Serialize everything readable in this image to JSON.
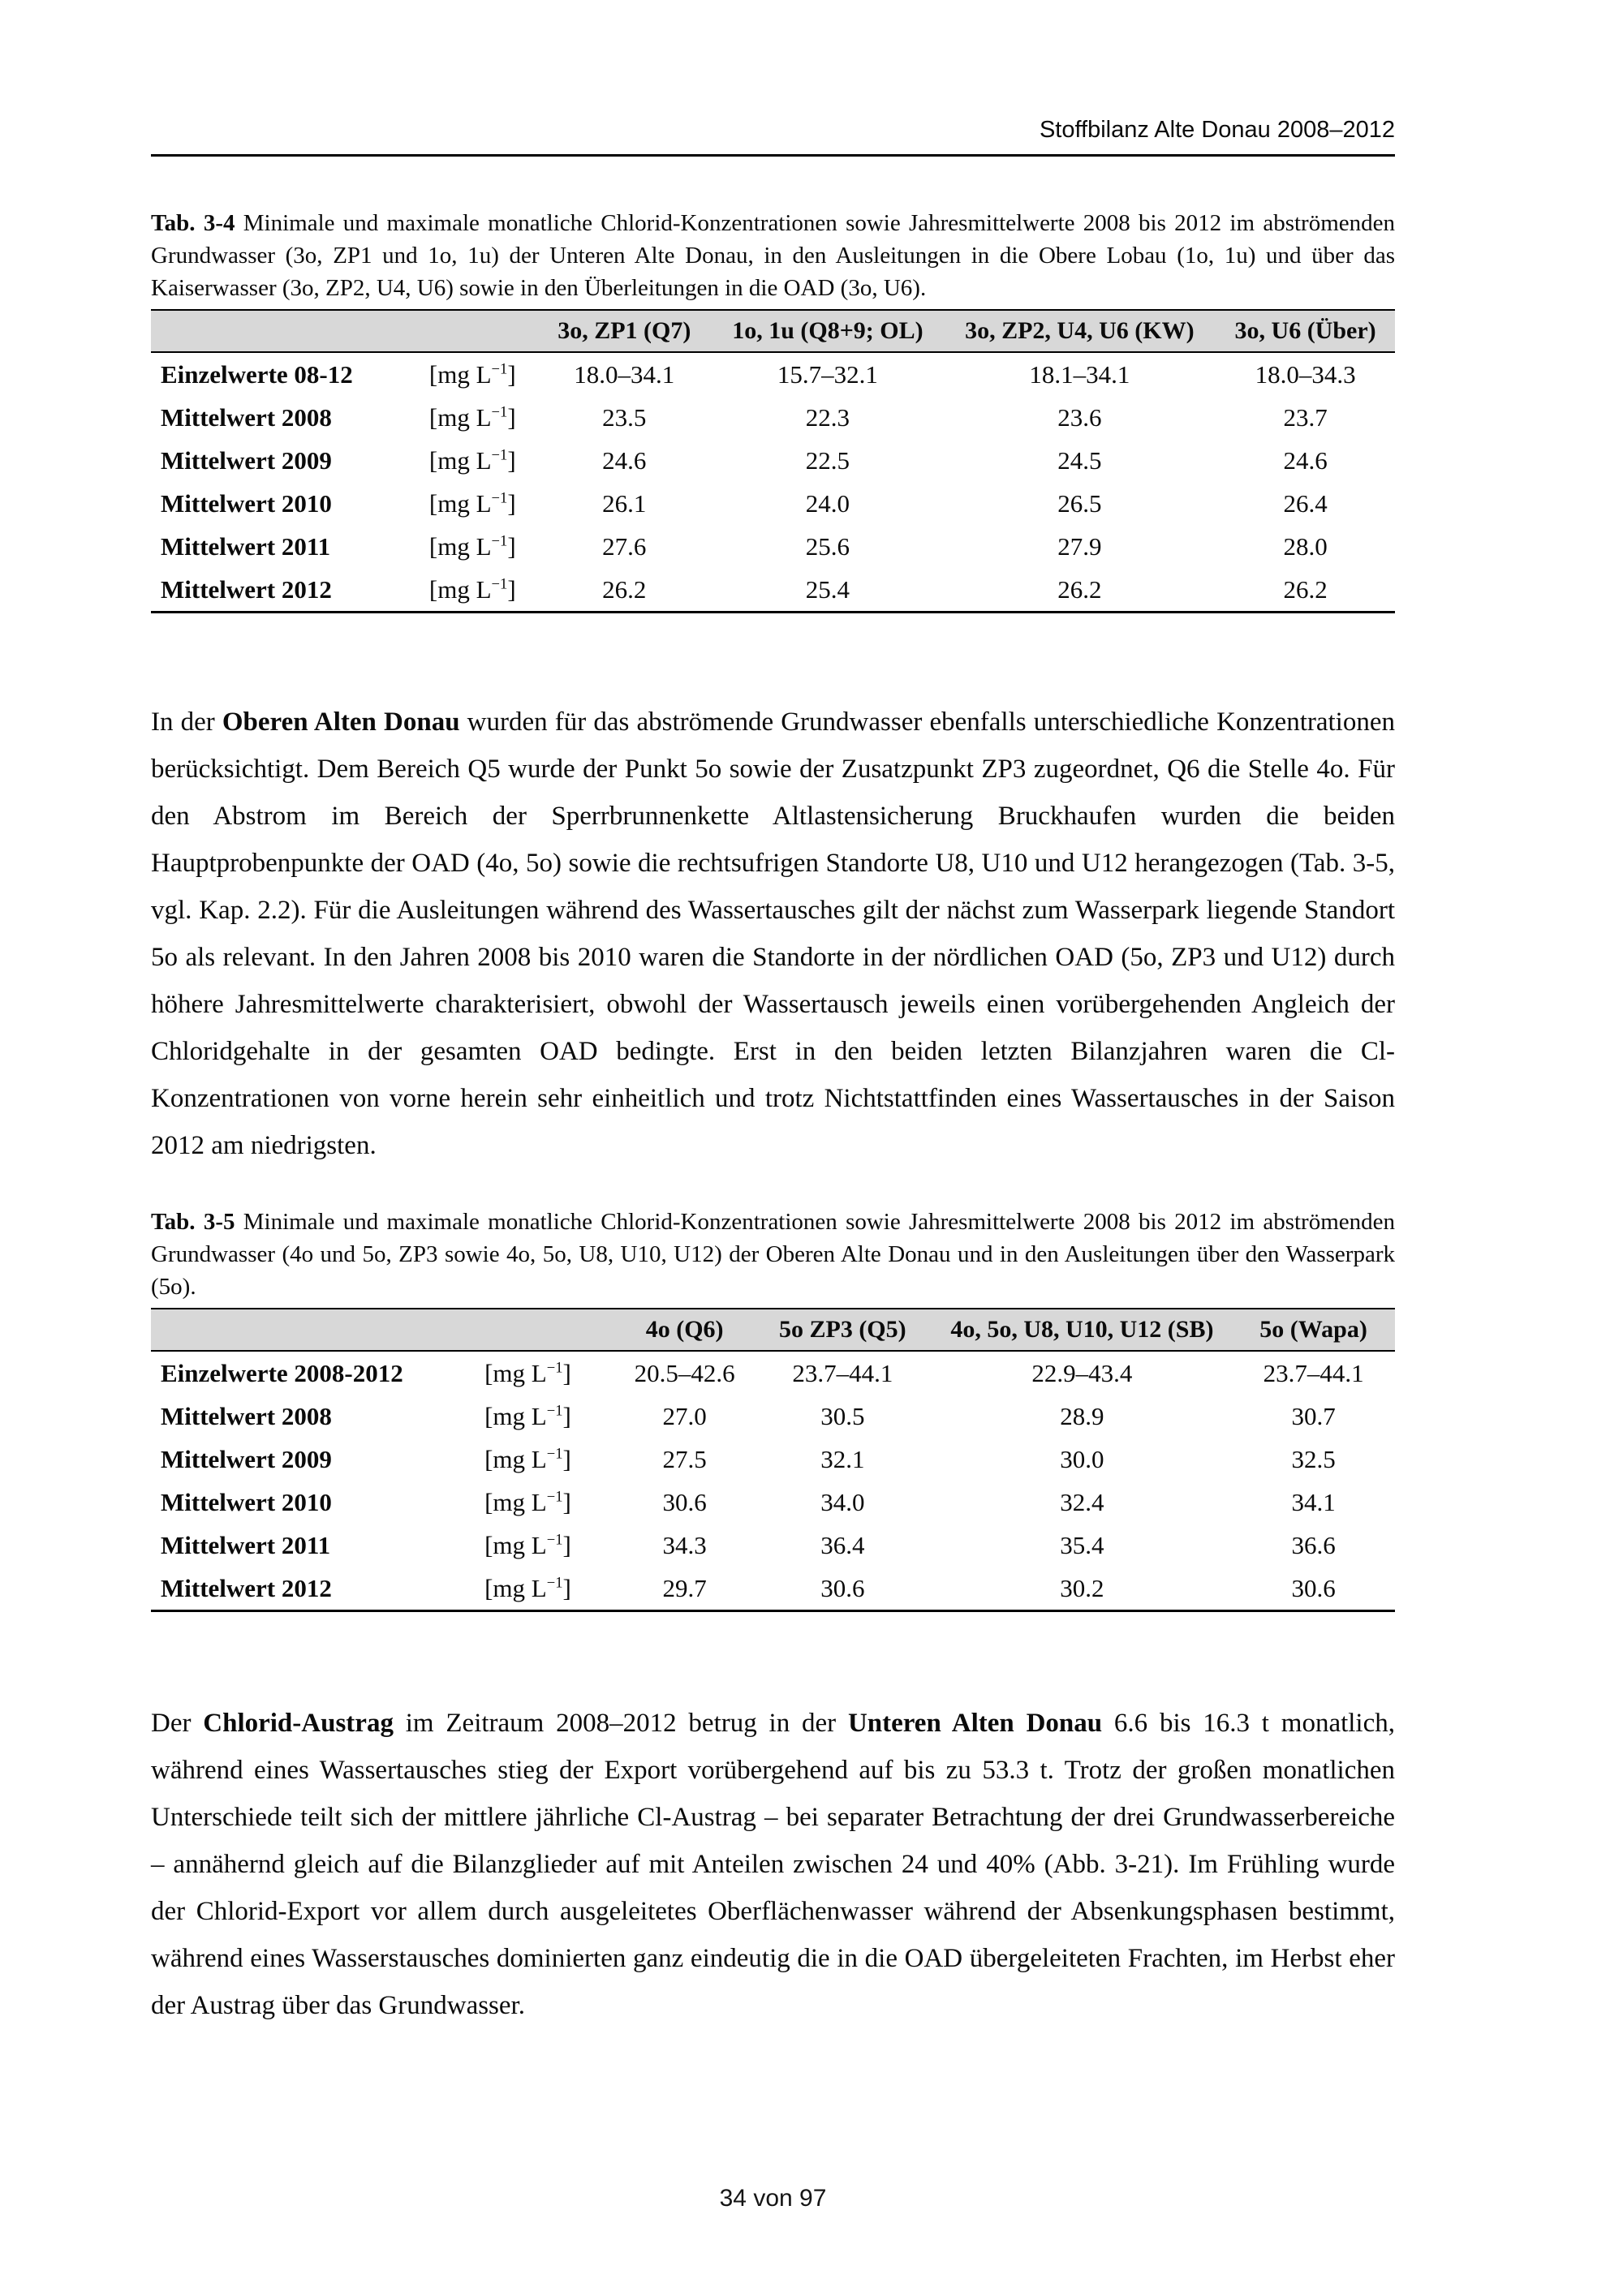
{
  "header": {
    "title": "Stoffbilanz Alte Donau 2008–2012"
  },
  "colors": {
    "table_header_background": "#d8d8d8"
  },
  "caption1": {
    "label": "Tab. 3-4",
    "text": " Minimale und maximale monatliche Chlorid-Konzentrationen sowie Jahresmittelwerte 2008 bis 2012 im abströmenden Grundwasser (3o, ZP1 und 1o, 1u) der Unteren Alte Donau, in den Ausleitungen in die Obere Lobau (1o, 1u) und über das Kaiserwasser (3o, ZP2, U4, U6) sowie in den Überleitungen in die OAD (3o, U6)."
  },
  "table1": {
    "columns": [
      "3o, ZP1 (Q7)",
      "1o, 1u (Q8+9; OL)",
      "3o, ZP2, U4, U6 (KW)",
      "3o, U6 (Über)"
    ],
    "unit": {
      "prefix": "[mg L",
      "sup": "−1",
      "suffix": "]"
    },
    "rows": [
      {
        "label": "Einzelwerte 08-12",
        "values": [
          "18.0–34.1",
          "15.7–32.1",
          "18.1–34.1",
          "18.0–34.3"
        ]
      },
      {
        "label": "Mittelwert 2008",
        "values": [
          "23.5",
          "22.3",
          "23.6",
          "23.7"
        ]
      },
      {
        "label": "Mittelwert 2009",
        "values": [
          "24.6",
          "22.5",
          "24.5",
          "24.6"
        ]
      },
      {
        "label": "Mittelwert 2010",
        "values": [
          "26.1",
          "24.0",
          "26.5",
          "26.4"
        ]
      },
      {
        "label": "Mittelwert 2011",
        "values": [
          "27.6",
          "25.6",
          "27.9",
          "28.0"
        ]
      },
      {
        "label": "Mittelwert 2012",
        "values": [
          "26.2",
          "25.4",
          "26.2",
          "26.2"
        ]
      }
    ]
  },
  "para1": {
    "segments": [
      {
        "text": "In der "
      },
      {
        "text": "Oberen Alten Donau"
      },
      {
        "text": " wurden für das abströmende Grundwasser ebenfalls unterschiedliche Konzentrationen berücksichtigt. Dem Bereich Q5 wurde der Punkt 5o sowie der Zusatzpunkt ZP3 zugeordnet, Q6 die Stelle 4o. Für den Abstrom im Bereich der Sperrbrunnenkette Altlastensicherung Bruckhaufen wurden die beiden Hauptprobenpunkte der OAD (4o, 5o) sowie die rechtsufrigen Standorte U8, U10 und U12 herangezogen (Tab. 3-5, vgl. Kap. 2.2). Für die Ausleitungen während des Wassertausches gilt der nächst zum Wasserpark liegende Standort 5o als relevant. In den Jahren 2008 bis 2010 waren die Standorte in der nördlichen OAD (5o, ZP3 und U12) durch höhere Jahresmittelwerte charakterisiert, obwohl der Wassertausch jeweils einen vorübergehenden Angleich der Chloridgehalte in der gesamten OAD bedingte. Erst in den beiden letzten Bilanzjahren waren die Cl-Konzentrationen von vorne herein sehr einheitlich und trotz Nichtstattfinden eines Wassertausches in der Saison 2012 am niedrigsten."
      }
    ]
  },
  "caption2": {
    "label": "Tab. 3-5",
    "text": " Minimale und maximale monatliche Chlorid-Konzentrationen sowie Jahresmittelwerte 2008 bis 2012 im abströmenden Grundwasser (4o und 5o, ZP3 sowie 4o, 5o, U8, U10, U12) der Oberen Alte Donau und in den Ausleitungen über den Wasserpark (5o)."
  },
  "table2": {
    "columns": [
      "4o (Q6)",
      "5o ZP3 (Q5)",
      "4o, 5o, U8, U10, U12 (SB)",
      "5o (Wapa)"
    ],
    "unit": {
      "prefix": "[mg L",
      "sup": "−1",
      "suffix": "]"
    },
    "rows": [
      {
        "label": "Einzelwerte 2008-2012",
        "values": [
          "20.5–42.6",
          "23.7–44.1",
          "22.9–43.4",
          "23.7–44.1"
        ]
      },
      {
        "label": "Mittelwert 2008",
        "values": [
          "27.0",
          "30.5",
          "28.9",
          "30.7"
        ]
      },
      {
        "label": "Mittelwert 2009",
        "values": [
          "27.5",
          "32.1",
          "30.0",
          "32.5"
        ]
      },
      {
        "label": "Mittelwert 2010",
        "values": [
          "30.6",
          "34.0",
          "32.4",
          "34.1"
        ]
      },
      {
        "label": "Mittelwert 2011",
        "values": [
          "34.3",
          "36.4",
          "35.4",
          "36.6"
        ]
      },
      {
        "label": "Mittelwert 2012",
        "values": [
          "29.7",
          "30.6",
          "30.2",
          "30.6"
        ]
      }
    ]
  },
  "para2": {
    "segments": [
      {
        "text": "Der "
      },
      {
        "text": "Chlorid-Austrag"
      },
      {
        "text": " im Zeitraum 2008–2012 betrug in der "
      },
      {
        "text": "Unteren Alten Donau"
      },
      {
        "text": " 6.6 bis 16.3 t monatlich, während eines Wassertausches stieg der Export vorübergehend auf bis zu 53.3 t. Trotz der großen monatlichen Unterschiede teilt sich der mittlere jährliche Cl-Austrag – bei separater Betrachtung der drei Grundwasserbereiche – annähernd gleich auf die Bilanzglieder auf mit Anteilen zwischen 24 und 40% (Abb. 3-21). Im Frühling wurde der Chlorid-Export vor allem durch ausgeleitetes Oberflächenwasser während der Absenkungsphasen bestimmt, während eines Wasser­stausches dominierten ganz eindeutig die in die OAD übergeleiteten Frachten, im Herbst eher der Austrag über das Grundwasser."
      }
    ]
  },
  "footer": {
    "text": "34 von 97"
  }
}
